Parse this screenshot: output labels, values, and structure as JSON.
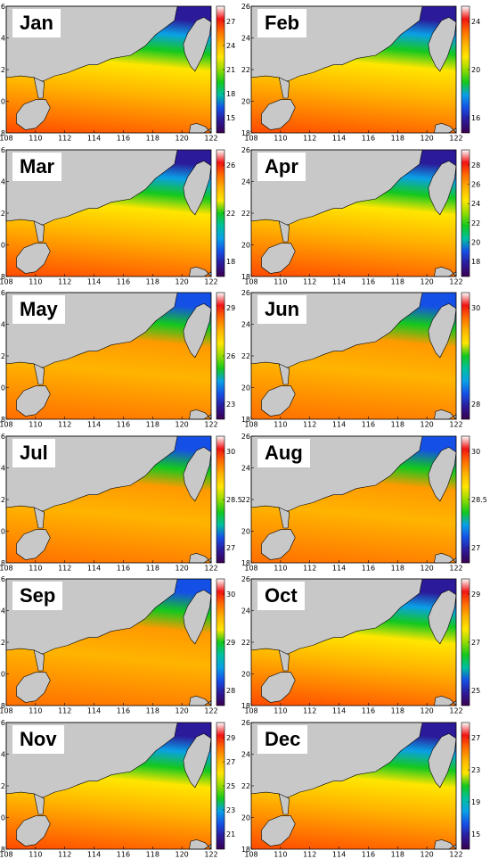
{
  "axes": {
    "lon_ticks": [
      "108",
      "110",
      "112",
      "114",
      "116",
      "118",
      "120",
      "122"
    ],
    "lat_ticks": [
      "18",
      "20",
      "22",
      "24",
      "26"
    ],
    "lon_range": [
      108,
      122
    ],
    "lat_range": [
      18,
      26
    ]
  },
  "colors": {
    "land": "#c8c8c8",
    "colormap": [
      "#3a004f",
      "#2b1a9a",
      "#1550e6",
      "#0aa0e6",
      "#00c0a0",
      "#14c81e",
      "#96dc00",
      "#ffe600",
      "#ffb400",
      "#ff6e00",
      "#f01414",
      "#ffffff"
    ]
  },
  "panels": [
    {
      "month": "Jan",
      "colorbar_ticks": [
        "27",
        "24",
        "21",
        "18",
        "15"
      ]
    },
    {
      "month": "Feb",
      "colorbar_ticks": [
        "24",
        "20",
        "16"
      ]
    },
    {
      "month": "Mar",
      "colorbar_ticks": [
        "26",
        "22",
        "18"
      ]
    },
    {
      "month": "Apr",
      "colorbar_ticks": [
        "28",
        "26",
        "24",
        "22",
        "20",
        "18"
      ]
    },
    {
      "month": "May",
      "colorbar_ticks": [
        "29",
        "26",
        "23"
      ]
    },
    {
      "month": "Jun",
      "colorbar_ticks": [
        "30",
        "28"
      ]
    },
    {
      "month": "Jul",
      "colorbar_ticks": [
        "30",
        "28.5",
        "27"
      ]
    },
    {
      "month": "Aug",
      "colorbar_ticks": [
        "30",
        "28.5",
        "27"
      ]
    },
    {
      "month": "Sep",
      "colorbar_ticks": [
        "30",
        "29",
        "28"
      ]
    },
    {
      "month": "Oct",
      "colorbar_ticks": [
        "29",
        "27",
        "25"
      ]
    },
    {
      "month": "Nov",
      "colorbar_ticks": [
        "29",
        "27",
        "25",
        "23",
        "21"
      ]
    },
    {
      "month": "Dec",
      "colorbar_ticks": [
        "27",
        "23",
        "19",
        "15"
      ]
    }
  ]
}
